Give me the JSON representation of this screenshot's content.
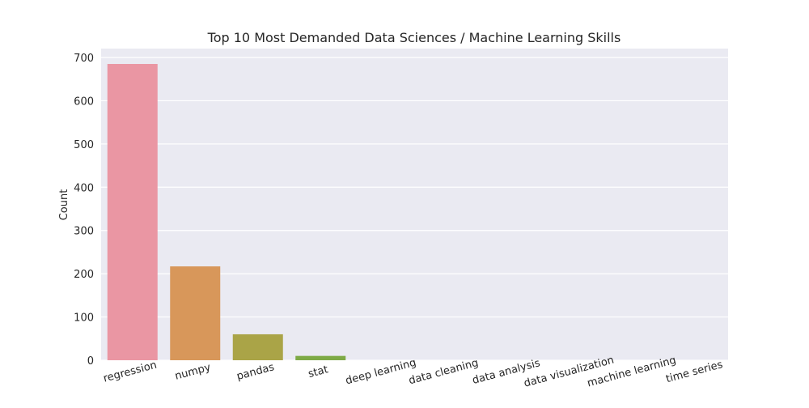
{
  "chart_data": {
    "type": "bar",
    "title": "Top 10 Most Demanded Data Sciences / Machine Learning Skills",
    "xlabel": "",
    "ylabel": "Count",
    "categories": [
      "regression",
      "numpy",
      "pandas",
      "stat",
      "deep learning",
      "data cleaning",
      "data analysis",
      "data visualization",
      "machine learning",
      "time series"
    ],
    "values": [
      685,
      217,
      60,
      10,
      0,
      0,
      0,
      0,
      0,
      0
    ],
    "ylim": [
      0,
      700
    ],
    "yticks": [
      0,
      100,
      200,
      300,
      400,
      500,
      600,
      700
    ],
    "colors": [
      "#ea96a3",
      "#d8975a",
      "#aaa447",
      "#7eaa46",
      "#4dab6e",
      "#50a7a0",
      "#54a5bd",
      "#6ea8e6",
      "#b59ae9",
      "#e28ed5"
    ],
    "grid": true,
    "legend": "none"
  }
}
